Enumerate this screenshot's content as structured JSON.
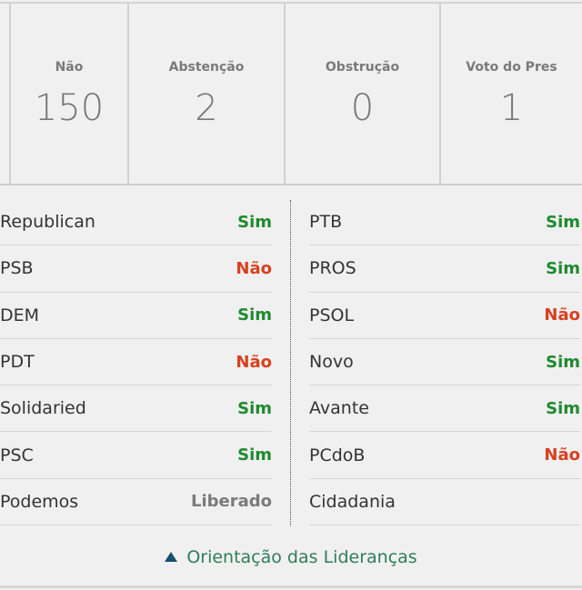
{
  "summary": [
    {
      "label": "Não",
      "value": "150"
    },
    {
      "label": "Abstenção",
      "value": "2"
    },
    {
      "label": "Obstrução",
      "value": "0"
    },
    {
      "label": "Voto do Pres",
      "value": "1"
    }
  ],
  "left": [
    {
      "party": "Republican",
      "vote": "Sim",
      "color": "#1e8a2e"
    },
    {
      "party": "PSB",
      "vote": "Não",
      "color": "#d9401e"
    },
    {
      "party": "DEM",
      "vote": "Sim",
      "color": "#1e8a2e"
    },
    {
      "party": "PDT",
      "vote": "Não",
      "color": "#d9401e"
    },
    {
      "party": "Solidaried",
      "vote": "Sim",
      "color": "#1e8a2e"
    },
    {
      "party": "PSC",
      "vote": "Sim",
      "color": "#1e8a2e"
    },
    {
      "party": "Podemos",
      "vote": "Liberado",
      "color": "#7a7a7a"
    }
  ],
  "right": [
    {
      "party": "PTB",
      "vote": "Sim",
      "color": "#1e8a2e"
    },
    {
      "party": "PROS",
      "vote": "Sim",
      "color": "#1e8a2e"
    },
    {
      "party": "PSOL",
      "vote": "Não",
      "color": "#d9401e"
    },
    {
      "party": "Novo",
      "vote": "Sim",
      "color": "#1e8a2e"
    },
    {
      "party": "Avante",
      "vote": "Sim",
      "color": "#1e8a2e"
    },
    {
      "party": "PCdoB",
      "vote": "Não",
      "color": "#d9401e"
    },
    {
      "party": "Cidadania",
      "vote": "",
      "color": "#1e8a2e"
    }
  ],
  "footer": {
    "label": "Orientação das Lideranças",
    "icon": "triangle-up-icon"
  }
}
